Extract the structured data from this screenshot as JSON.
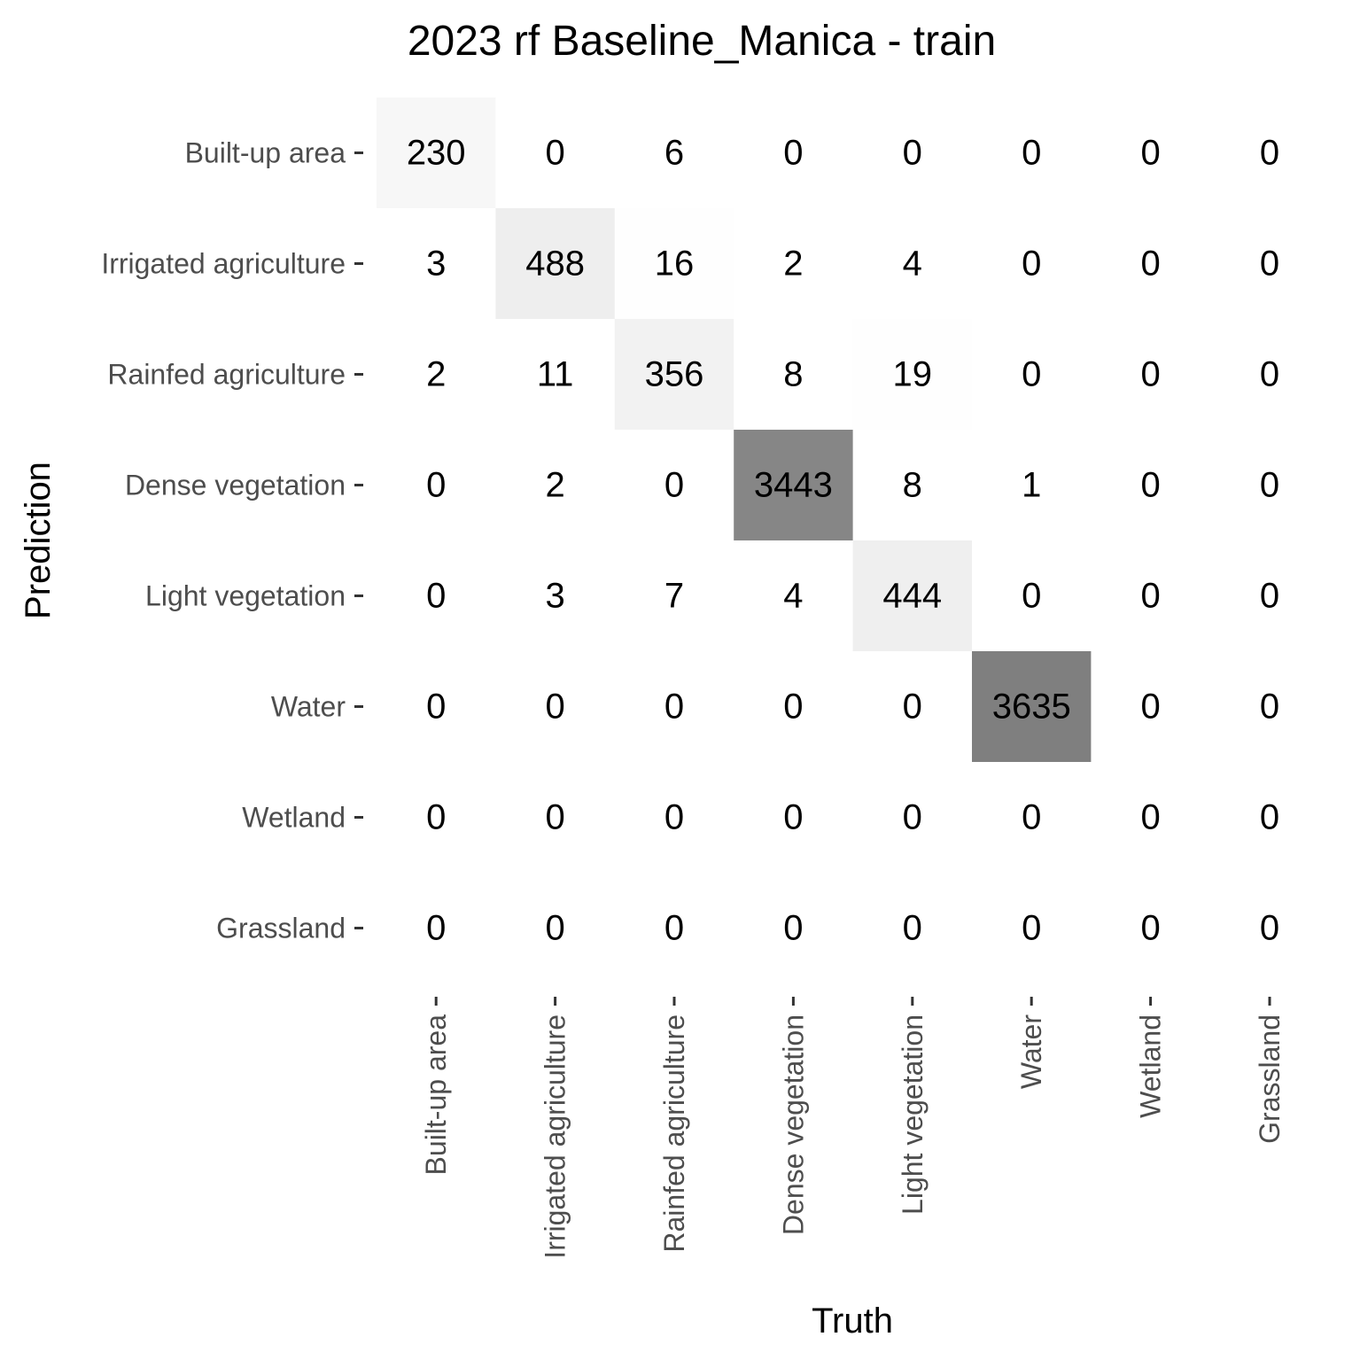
{
  "chart_data": {
    "type": "heatmap",
    "title": "2023 rf Baseline_Manica - train",
    "xlabel": "Truth",
    "ylabel": "Prediction",
    "x_categories": [
      "Built-up area",
      "Irrigated agriculture",
      "Rainfed agriculture",
      "Dense vegetation",
      "Light vegetation",
      "Water",
      "Wetland",
      "Grassland"
    ],
    "y_categories": [
      "Built-up area",
      "Irrigated agriculture",
      "Rainfed agriculture",
      "Dense vegetation",
      "Light vegetation",
      "Water",
      "Wetland",
      "Grassland"
    ],
    "values": [
      [
        230,
        0,
        6,
        0,
        0,
        0,
        0,
        0
      ],
      [
        3,
        488,
        16,
        2,
        4,
        0,
        0,
        0
      ],
      [
        2,
        11,
        356,
        8,
        19,
        0,
        0,
        0
      ],
      [
        0,
        2,
        0,
        3443,
        8,
        1,
        0,
        0
      ],
      [
        0,
        3,
        7,
        4,
        444,
        0,
        0,
        0
      ],
      [
        0,
        0,
        0,
        0,
        0,
        3635,
        0,
        0
      ],
      [
        0,
        0,
        0,
        0,
        0,
        0,
        0,
        0
      ],
      [
        0,
        0,
        0,
        0,
        0,
        0,
        0,
        0
      ]
    ],
    "color_scale": {
      "low": "#ffffff",
      "high": "#7f7f7f"
    },
    "grid": false,
    "legend": "none"
  }
}
